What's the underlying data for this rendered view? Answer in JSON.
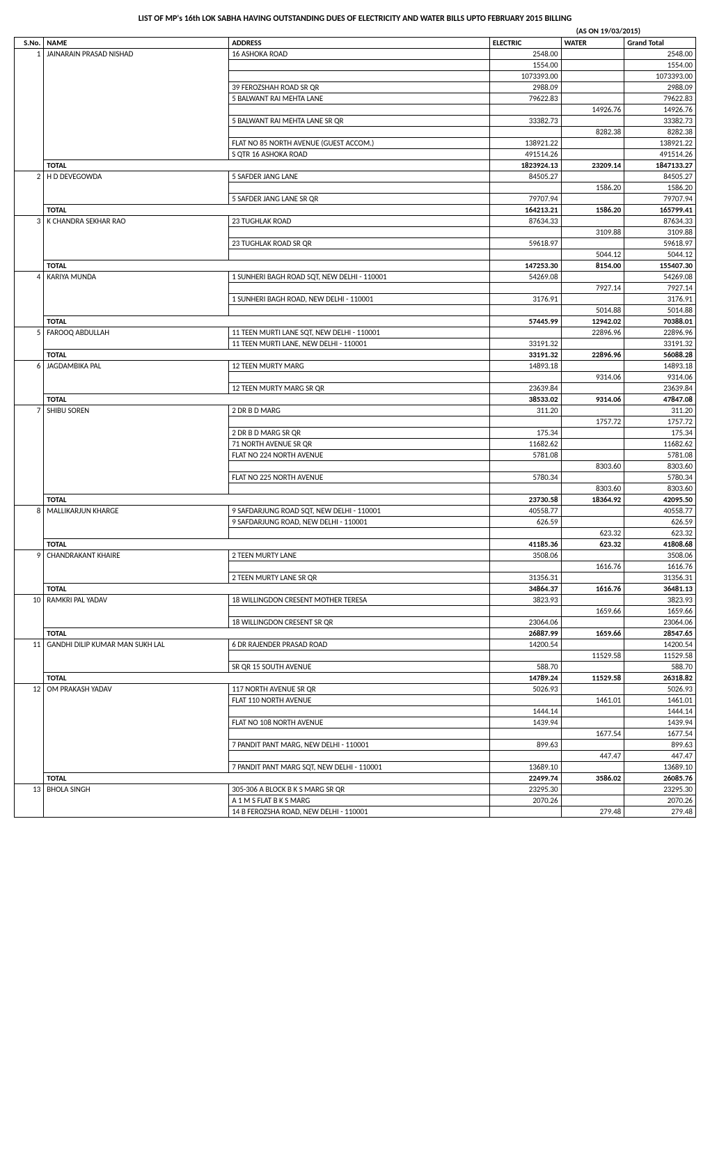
{
  "title": "LIST OF MP's 16th LOK SABHA HAVING OUTSTANDING DUES OF ELECTRICITY AND WATER BILLS UPTO FEBRUARY 2015 BILLING",
  "as_of": "(AS ON 19/03/2015)",
  "columns": {
    "sno": "S.No.",
    "name": "NAME",
    "address": "ADDRESS",
    "electric": "ELECTRIC",
    "water": "WATER",
    "grand_total": "Grand Total"
  },
  "members": [
    {
      "sno": 1,
      "name": "JAINARAIN PRASAD NISHAD",
      "rows": [
        {
          "address": "16 ASHOKA ROAD",
          "electric": "2548.00",
          "water": "",
          "total": "2548.00"
        },
        {
          "address": "",
          "electric": "1554.00",
          "water": "",
          "total": "1554.00"
        },
        {
          "address": "",
          "electric": "1073393.00",
          "water": "",
          "total": "1073393.00"
        },
        {
          "address": "39 FEROZSHAH ROAD SR QR",
          "electric": "2988.09",
          "water": "",
          "total": "2988.09"
        },
        {
          "address": "5 BALWANT RAI MEHTA LANE",
          "electric": "79622.83",
          "water": "",
          "total": "79622.83"
        },
        {
          "address": "",
          "electric": "",
          "water": "14926.76",
          "total": "14926.76"
        },
        {
          "address": "5 BALWANT RAI MEHTA LANE SR QR",
          "electric": "33382.73",
          "water": "",
          "total": "33382.73"
        },
        {
          "address": "",
          "electric": "",
          "water": "8282.38",
          "total": "8282.38"
        },
        {
          "address": "FLAT NO 85 NORTH AVENUE (GUEST ACCOM.)",
          "electric": "138921.22",
          "water": "",
          "total": "138921.22"
        },
        {
          "address": "S QTR 16 ASHOKA ROAD",
          "electric": "491514.26",
          "water": "",
          "total": "491514.26"
        }
      ],
      "total": {
        "electric": "1823924.13",
        "water": "23209.14",
        "total": "1847133.27"
      }
    },
    {
      "sno": 2,
      "name": "H D DEVEGOWDA",
      "rows": [
        {
          "address": "5 SAFDER JANG LANE",
          "electric": "84505.27",
          "water": "",
          "total": "84505.27"
        },
        {
          "address": "",
          "electric": "",
          "water": "1586.20",
          "total": "1586.20"
        },
        {
          "address": "5 SAFDER JANG LANE SR QR",
          "electric": "79707.94",
          "water": "",
          "total": "79707.94"
        }
      ],
      "total": {
        "electric": "164213.21",
        "water": "1586.20",
        "total": "165799.41"
      }
    },
    {
      "sno": 3,
      "name": "K CHANDRA SEKHAR RAO",
      "rows": [
        {
          "address": "23 TUGHLAK ROAD",
          "electric": "87634.33",
          "water": "",
          "total": "87634.33"
        },
        {
          "address": "",
          "electric": "",
          "water": "3109.88",
          "total": "3109.88"
        },
        {
          "address": "23 TUGHLAK ROAD SR QR",
          "electric": "59618.97",
          "water": "",
          "total": "59618.97"
        },
        {
          "address": "",
          "electric": "",
          "water": "5044.12",
          "total": "5044.12"
        }
      ],
      "total": {
        "electric": "147253.30",
        "water": "8154.00",
        "total": "155407.30"
      }
    },
    {
      "sno": 4,
      "name": "KARIYA MUNDA",
      "rows": [
        {
          "address": "1 SUNHERI BAGH ROAD SQT, NEW DELHI - 110001",
          "electric": "54269.08",
          "water": "",
          "total": "54269.08"
        },
        {
          "address": "",
          "electric": "",
          "water": "7927.14",
          "total": "7927.14"
        },
        {
          "address": "1 SUNHERI BAGH ROAD, NEW DELHI - 110001",
          "electric": "3176.91",
          "water": "",
          "total": "3176.91"
        },
        {
          "address": "",
          "electric": "",
          "water": "5014.88",
          "total": "5014.88"
        }
      ],
      "total": {
        "electric": "57445.99",
        "water": "12942.02",
        "total": "70388.01"
      }
    },
    {
      "sno": 5,
      "name": "FAROOQ ABDULLAH",
      "rows": [
        {
          "address": "11 TEEN MURTI LANE SQT, NEW DELHI - 110001",
          "electric": "",
          "water": "22896.96",
          "total": "22896.96"
        },
        {
          "address": "11 TEEN MURTI LANE, NEW DELHI - 110001",
          "electric": "33191.32",
          "water": "",
          "total": "33191.32"
        }
      ],
      "total": {
        "electric": "33191.32",
        "water": "22896.96",
        "total": "56088.28"
      }
    },
    {
      "sno": 6,
      "name": "JAGDAMBIKA PAL",
      "rows": [
        {
          "address": "12 TEEN MURTY MARG",
          "electric": "14893.18",
          "water": "",
          "total": "14893.18"
        },
        {
          "address": "",
          "electric": "",
          "water": "9314.06",
          "total": "9314.06"
        },
        {
          "address": "12 TEEN MURTY MARG SR QR",
          "electric": "23639.84",
          "water": "",
          "total": "23639.84"
        }
      ],
      "total": {
        "electric": "38533.02",
        "water": "9314.06",
        "total": "47847.08"
      }
    },
    {
      "sno": 7,
      "name": "SHIBU SOREN",
      "rows": [
        {
          "address": "2 DR B D MARG",
          "electric": "311.20",
          "water": "",
          "total": "311.20"
        },
        {
          "address": "",
          "electric": "",
          "water": "1757.72",
          "total": "1757.72"
        },
        {
          "address": "2 DR B D MARG SR QR",
          "electric": "175.34",
          "water": "",
          "total": "175.34"
        },
        {
          "address": "71 NORTH AVENUE SR QR",
          "electric": "11682.62",
          "water": "",
          "total": "11682.62"
        },
        {
          "address": "FLAT NO 224 NORTH AVENUE",
          "electric": "5781.08",
          "water": "",
          "total": "5781.08"
        },
        {
          "address": "",
          "electric": "",
          "water": "8303.60",
          "total": "8303.60"
        },
        {
          "address": "FLAT NO 225 NORTH AVENUE",
          "electric": "5780.34",
          "water": "",
          "total": "5780.34"
        },
        {
          "address": "",
          "electric": "",
          "water": "8303.60",
          "total": "8303.60"
        }
      ],
      "total": {
        "electric": "23730.58",
        "water": "18364.92",
        "total": "42095.50"
      }
    },
    {
      "sno": 8,
      "name": "MALLIKARJUN KHARGE",
      "rows": [
        {
          "address": "9 SAFDARJUNG ROAD SQT, NEW DELHI - 110001",
          "electric": "40558.77",
          "water": "",
          "total": "40558.77"
        },
        {
          "address": "9 SAFDARJUNG ROAD, NEW DELHI - 110001",
          "electric": "626.59",
          "water": "",
          "total": "626.59"
        },
        {
          "address": "",
          "electric": "",
          "water": "623.32",
          "total": "623.32"
        }
      ],
      "total": {
        "electric": "41185.36",
        "water": "623.32",
        "total": "41808.68"
      }
    },
    {
      "sno": 9,
      "name": "CHANDRAKANT KHAIRE",
      "rows": [
        {
          "address": "2 TEEN MURTY LANE",
          "electric": "3508.06",
          "water": "",
          "total": "3508.06"
        },
        {
          "address": "",
          "electric": "",
          "water": "1616.76",
          "total": "1616.76"
        },
        {
          "address": "2 TEEN MURTY LANE SR QR",
          "electric": "31356.31",
          "water": "",
          "total": "31356.31"
        }
      ],
      "total": {
        "electric": "34864.37",
        "water": "1616.76",
        "total": "36481.13"
      }
    },
    {
      "sno": 10,
      "name": "RAMKRI PAL YADAV",
      "rows": [
        {
          "address": "18 WILLINGDON CRESENT MOTHER TERESA",
          "electric": "3823.93",
          "water": "",
          "total": "3823.93"
        },
        {
          "address": "",
          "electric": "",
          "water": "1659.66",
          "total": "1659.66"
        },
        {
          "address": "18 WILLINGDON CRESENT SR QR",
          "electric": "23064.06",
          "water": "",
          "total": "23064.06"
        }
      ],
      "total": {
        "electric": "26887.99",
        "water": "1659.66",
        "total": "28547.65"
      }
    },
    {
      "sno": 11,
      "name": "GANDHI DILIP KUMAR MAN SUKH LAL",
      "rows": [
        {
          "address": "6 DR RAJENDER PRASAD ROAD",
          "electric": "14200.54",
          "water": "",
          "total": "14200.54"
        },
        {
          "address": "",
          "electric": "",
          "water": "11529.58",
          "total": "11529.58"
        },
        {
          "address": "SR QR 15 SOUTH AVENUE",
          "electric": "588.70",
          "water": "",
          "total": "588.70"
        }
      ],
      "total": {
        "electric": "14789.24",
        "water": "11529.58",
        "total": "26318.82"
      }
    },
    {
      "sno": 12,
      "name": "OM PRAKASH YADAV",
      "rows": [
        {
          "address": "117 NORTH AVENUE SR QR",
          "electric": "5026.93",
          "water": "",
          "total": "5026.93"
        },
        {
          "address": "FLAT 110 NORTH AVENUE",
          "electric": "",
          "water": "1461.01",
          "total": "1461.01"
        },
        {
          "address": "",
          "electric": "1444.14",
          "water": "",
          "total": "1444.14"
        },
        {
          "address": "FLAT NO 108 NORTH AVENUE",
          "electric": "1439.94",
          "water": "",
          "total": "1439.94"
        },
        {
          "address": "",
          "electric": "",
          "water": "1677.54",
          "total": "1677.54"
        },
        {
          "address": "7 PANDIT PANT MARG, NEW DELHI - 110001",
          "electric": "899.63",
          "water": "",
          "total": "899.63"
        },
        {
          "address": "",
          "electric": "",
          "water": "447.47",
          "total": "447.47"
        },
        {
          "address": "7 PANDIT PANT MARG SQT, NEW DELHI - 110001",
          "electric": "13689.10",
          "water": "",
          "total": "13689.10"
        }
      ],
      "total": {
        "electric": "22499.74",
        "water": "3586.02",
        "total": "26085.76"
      }
    },
    {
      "sno": 13,
      "name": "BHOLA SINGH",
      "rows": [
        {
          "address": "305-306 A BLOCK B K S MARG SR QR",
          "electric": "23295.30",
          "water": "",
          "total": "23295.30"
        },
        {
          "address": "A 1 M S FLAT B K S MARG",
          "electric": "2070.26",
          "water": "",
          "total": "2070.26"
        },
        {
          "address": "14 B FEROZSHA ROAD, NEW DELHI - 110001",
          "electric": "",
          "water": "279.48",
          "total": "279.48"
        }
      ],
      "total": null
    }
  ],
  "total_label": "TOTAL"
}
